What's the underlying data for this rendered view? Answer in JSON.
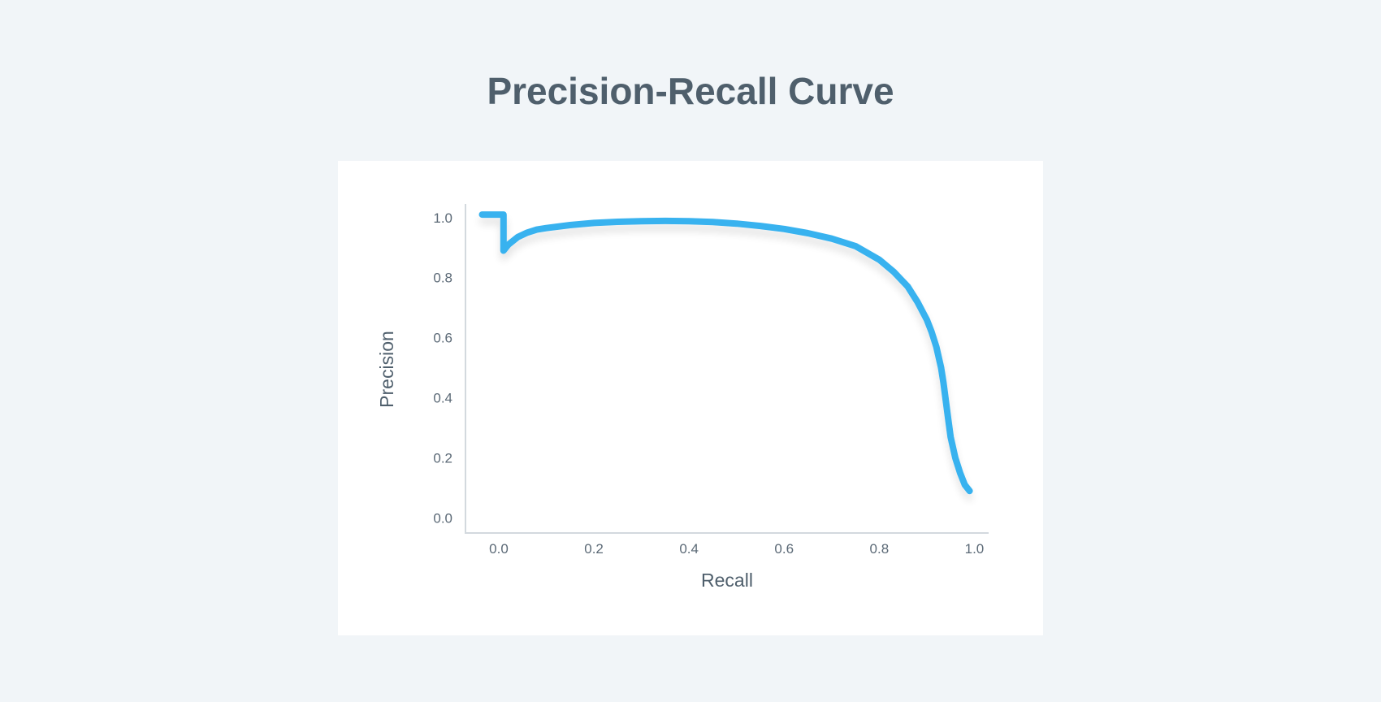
{
  "title": "Precision-Recall Curve",
  "chart_data": {
    "type": "line",
    "title": "Precision-Recall Curve",
    "xlabel": "Recall",
    "ylabel": "Precision",
    "xlim": [
      -0.07,
      1.03
    ],
    "ylim": [
      -0.05,
      1.04
    ],
    "xticks": [
      0.0,
      0.2,
      0.4,
      0.6,
      0.8,
      1.0
    ],
    "yticks": [
      0.0,
      0.2,
      0.4,
      0.6,
      0.8,
      1.0
    ],
    "xtick_labels": [
      "0.0",
      "0.2",
      "0.4",
      "0.6",
      "0.8",
      "1.0"
    ],
    "ytick_labels": [
      "0.0",
      "0.2",
      "0.4",
      "0.6",
      "0.8",
      "1.0"
    ],
    "grid": false,
    "legend": "none",
    "series": [
      {
        "color": "#38b2ef",
        "x": [
          -0.035,
          0.0,
          0.01,
          0.01,
          0.02,
          0.04,
          0.06,
          0.08,
          0.1,
          0.15,
          0.2,
          0.25,
          0.3,
          0.35,
          0.4,
          0.45,
          0.5,
          0.55,
          0.6,
          0.65,
          0.7,
          0.75,
          0.8,
          0.83,
          0.86,
          0.88,
          0.9,
          0.91,
          0.92,
          0.93,
          0.935,
          0.94,
          0.945,
          0.95,
          0.96,
          0.97,
          0.98,
          0.99
        ],
        "y": [
          1.01,
          1.01,
          1.01,
          0.89,
          0.91,
          0.935,
          0.95,
          0.96,
          0.965,
          0.975,
          0.982,
          0.986,
          0.988,
          0.989,
          0.988,
          0.985,
          0.98,
          0.972,
          0.962,
          0.948,
          0.93,
          0.905,
          0.86,
          0.82,
          0.77,
          0.72,
          0.66,
          0.62,
          0.57,
          0.5,
          0.45,
          0.39,
          0.33,
          0.27,
          0.2,
          0.15,
          0.11,
          0.09
        ]
      }
    ]
  }
}
